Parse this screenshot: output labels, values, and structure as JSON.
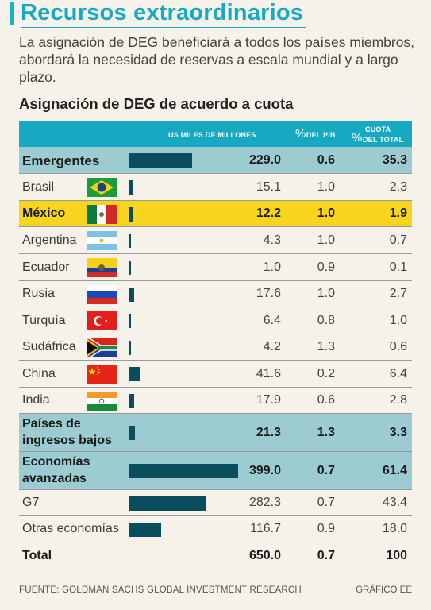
{
  "title": "Recursos extraordinarios",
  "subtitle": "La asignación de DEG beneficiará a todos los países miembros, abordará la necesidad de reservas a escala mundial y a largo plazo.",
  "footer": {
    "source": "FUENTE: GOLDMAN SACHS GLOBAL INVESTMENT RESEARCH",
    "credit": "GRÁFICO EE"
  },
  "colors": {
    "accent": "#16a9c4",
    "bar": "#0a4d5c",
    "group_row": "#9ccbd2",
    "highlight_row": "#f7d51e"
  },
  "chart_data": {
    "type": "bar",
    "title": "Asignación de DEG de acuerdo a cuota",
    "columns": {
      "usd": "US MILES DE MILLONES",
      "pib_sym": "%",
      "pib": "DEL PIB",
      "cuota_top": "CUOTA",
      "cuota_sym": "%",
      "cuota": "DEL TOTAL"
    },
    "rows": [
      {
        "name": "Emergentes",
        "usd": "229.0",
        "value": 229.0,
        "pib": "0.6",
        "cuota": "35.3",
        "style": "group",
        "flag": ""
      },
      {
        "name": "Brasil",
        "usd": "15.1",
        "value": 15.1,
        "pib": "1.0",
        "cuota": "2.3",
        "style": "normal",
        "flag": "brazil-flag-icon"
      },
      {
        "name": "México",
        "usd": "12.2",
        "value": 12.2,
        "pib": "1.0",
        "cuota": "1.9",
        "style": "highlight",
        "flag": "mexico-flag-icon"
      },
      {
        "name": "Argentina",
        "usd": "4.3",
        "value": 4.3,
        "pib": "1.0",
        "cuota": "0.7",
        "style": "normal",
        "flag": "argentina-flag-icon"
      },
      {
        "name": "Ecuador",
        "usd": "1.0",
        "value": 1.0,
        "pib": "0.9",
        "cuota": "0.1",
        "style": "normal",
        "flag": "ecuador-flag-icon"
      },
      {
        "name": "Rusia",
        "usd": "17.6",
        "value": 17.6,
        "pib": "1.0",
        "cuota": "2.7",
        "style": "normal",
        "flag": "russia-flag-icon"
      },
      {
        "name": "Turquía",
        "usd": "6.4",
        "value": 6.4,
        "pib": "0.8",
        "cuota": "1.0",
        "style": "normal",
        "flag": "turkey-flag-icon"
      },
      {
        "name": "Sudáfrica",
        "usd": "4.2",
        "value": 4.2,
        "pib": "1.3",
        "cuota": "0.6",
        "style": "normal",
        "flag": "south-africa-flag-icon"
      },
      {
        "name": "China",
        "usd": "41.6",
        "value": 41.6,
        "pib": "0.2",
        "cuota": "6.4",
        "style": "normal",
        "flag": "china-flag-icon"
      },
      {
        "name": "India",
        "usd": "17.9",
        "value": 17.9,
        "pib": "0.6",
        "cuota": "2.8",
        "style": "normal",
        "flag": "india-flag-icon"
      },
      {
        "name": "Países de ingresos bajos",
        "usd": "21.3",
        "value": 21.3,
        "pib": "1.3",
        "cuota": "3.3",
        "style": "group2",
        "flag": ""
      },
      {
        "name": "Economías avanzadas",
        "usd": "399.0",
        "value": 399.0,
        "pib": "0.7",
        "cuota": "61.4",
        "style": "group2",
        "flag": ""
      },
      {
        "name": "G7",
        "usd": "282.3",
        "value": 282.3,
        "pib": "0.7",
        "cuota": "43.4",
        "style": "normal",
        "flag": ""
      },
      {
        "name": "Otras economías",
        "usd": "116.7",
        "value": 116.7,
        "pib": "0.9",
        "cuota": "18.0",
        "style": "normal",
        "flag": ""
      },
      {
        "name": "Total",
        "usd": "650.0",
        "value": 650.0,
        "pib": "0.7",
        "cuota": "100",
        "style": "total",
        "flag": ""
      }
    ],
    "bar_max": 399.0
  }
}
